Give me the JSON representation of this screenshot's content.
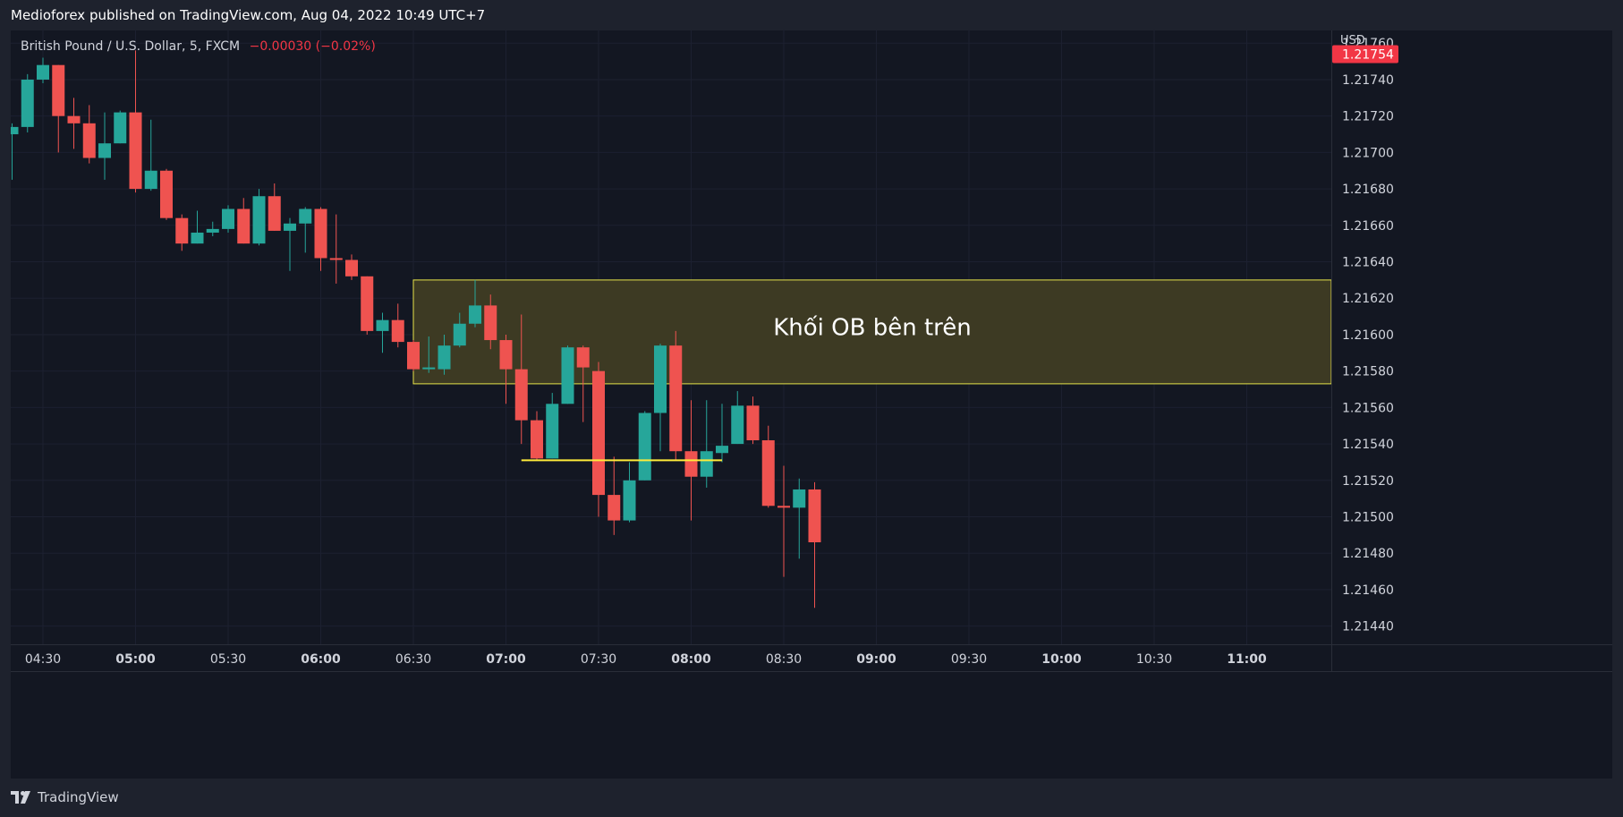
{
  "header": {
    "publish_text": "Medioforex published on TradingView.com, Aug 04, 2022 10:49 UTC+7"
  },
  "legend": {
    "symbol": "British Pound / U.S. Dollar, 5, FXCM",
    "change": "−0.00030 (−0.02%)"
  },
  "footer": {
    "brand": "TradingView",
    "logo_icon": "tradingview-logo-icon"
  },
  "colors": {
    "up": "#26a69a",
    "down": "#ef5350",
    "background": "#131722",
    "grid": "#1c2030",
    "zone_fill": "#3d3a23",
    "zone_border": "#e6e24a",
    "level_line": "#ffeb3b",
    "price_tag": "#f23645"
  },
  "chart_data": {
    "type": "candlestick",
    "currency_label": "USD",
    "ylim": [
      1.2143,
      1.21767
    ],
    "y_ticks": [
      "1.21760",
      "1.21740",
      "1.21720",
      "1.21700",
      "1.21680",
      "1.21660",
      "1.21640",
      "1.21620",
      "1.21600",
      "1.21580",
      "1.21560",
      "1.21540",
      "1.21520",
      "1.21500",
      "1.21480",
      "1.21460",
      "1.21440"
    ],
    "x_ticks": [
      {
        "label": "04:30",
        "bold": false
      },
      {
        "label": "05:00",
        "bold": true
      },
      {
        "label": "05:30",
        "bold": false
      },
      {
        "label": "06:00",
        "bold": true
      },
      {
        "label": "06:30",
        "bold": false
      },
      {
        "label": "07:00",
        "bold": true
      },
      {
        "label": "07:30",
        "bold": false
      },
      {
        "label": "08:00",
        "bold": true
      },
      {
        "label": "08:30",
        "bold": false
      },
      {
        "label": "09:00",
        "bold": true
      },
      {
        "label": "09:30",
        "bold": false
      },
      {
        "label": "10:00",
        "bold": true
      },
      {
        "label": "10:30",
        "bold": false
      },
      {
        "label": "11:00",
        "bold": true
      }
    ],
    "last_price": "1.21754",
    "candles": [
      {
        "time": "04:20",
        "o": 1.2171,
        "h": 1.21716,
        "l": 1.21685,
        "c": 1.21714
      },
      {
        "time": "04:25",
        "o": 1.21714,
        "h": 1.21743,
        "l": 1.21711,
        "c": 1.2174
      },
      {
        "time": "04:30",
        "o": 1.2174,
        "h": 1.21752,
        "l": 1.21738,
        "c": 1.21748
      },
      {
        "time": "04:35",
        "o": 1.21748,
        "h": 1.21748,
        "l": 1.217,
        "c": 1.2172
      },
      {
        "time": "04:40",
        "o": 1.2172,
        "h": 1.2173,
        "l": 1.21702,
        "c": 1.21716
      },
      {
        "time": "04:45",
        "o": 1.21716,
        "h": 1.21726,
        "l": 1.21694,
        "c": 1.21697
      },
      {
        "time": "04:50",
        "o": 1.21697,
        "h": 1.21722,
        "l": 1.21685,
        "c": 1.21705
      },
      {
        "time": "04:55",
        "o": 1.21705,
        "h": 1.21723,
        "l": 1.21705,
        "c": 1.21722
      },
      {
        "time": "05:00",
        "o": 1.21722,
        "h": 1.21756,
        "l": 1.21678,
        "c": 1.2168
      },
      {
        "time": "05:05",
        "o": 1.2168,
        "h": 1.21718,
        "l": 1.21679,
        "c": 1.2169
      },
      {
        "time": "05:10",
        "o": 1.2169,
        "h": 1.21691,
        "l": 1.21663,
        "c": 1.21664
      },
      {
        "time": "05:15",
        "o": 1.21664,
        "h": 1.21666,
        "l": 1.21646,
        "c": 1.2165
      },
      {
        "time": "05:20",
        "o": 1.2165,
        "h": 1.21668,
        "l": 1.2165,
        "c": 1.21656
      },
      {
        "time": "05:25",
        "o": 1.21656,
        "h": 1.21662,
        "l": 1.21654,
        "c": 1.21658
      },
      {
        "time": "05:30",
        "o": 1.21658,
        "h": 1.21671,
        "l": 1.21656,
        "c": 1.21669
      },
      {
        "time": "05:35",
        "o": 1.21669,
        "h": 1.21675,
        "l": 1.2165,
        "c": 1.2165
      },
      {
        "time": "05:40",
        "o": 1.2165,
        "h": 1.2168,
        "l": 1.21649,
        "c": 1.21676
      },
      {
        "time": "05:45",
        "o": 1.21676,
        "h": 1.21683,
        "l": 1.21657,
        "c": 1.21657
      },
      {
        "time": "05:50",
        "o": 1.21657,
        "h": 1.21664,
        "l": 1.21635,
        "c": 1.21661
      },
      {
        "time": "05:55",
        "o": 1.21661,
        "h": 1.2167,
        "l": 1.21645,
        "c": 1.21669
      },
      {
        "time": "06:00",
        "o": 1.21669,
        "h": 1.2167,
        "l": 1.21635,
        "c": 1.21642
      },
      {
        "time": "06:05",
        "o": 1.21642,
        "h": 1.21666,
        "l": 1.21628,
        "c": 1.21641
      },
      {
        "time": "06:10",
        "o": 1.21641,
        "h": 1.21644,
        "l": 1.2163,
        "c": 1.21632
      },
      {
        "time": "06:15",
        "o": 1.21632,
        "h": 1.21632,
        "l": 1.216,
        "c": 1.21602
      },
      {
        "time": "06:20",
        "o": 1.21602,
        "h": 1.21612,
        "l": 1.2159,
        "c": 1.21608
      },
      {
        "time": "06:25",
        "o": 1.21608,
        "h": 1.21617,
        "l": 1.21593,
        "c": 1.21596
      },
      {
        "time": "06:30",
        "o": 1.21596,
        "h": 1.21597,
        "l": 1.2158,
        "c": 1.21581
      },
      {
        "time": "06:35",
        "o": 1.21581,
        "h": 1.21599,
        "l": 1.21579,
        "c": 1.21582
      },
      {
        "time": "06:40",
        "o": 1.21581,
        "h": 1.216,
        "l": 1.21578,
        "c": 1.21594
      },
      {
        "time": "06:45",
        "o": 1.21594,
        "h": 1.21612,
        "l": 1.21593,
        "c": 1.21606
      },
      {
        "time": "06:50",
        "o": 1.21606,
        "h": 1.2163,
        "l": 1.21604,
        "c": 1.21616
      },
      {
        "time": "06:55",
        "o": 1.21616,
        "h": 1.21622,
        "l": 1.21592,
        "c": 1.21597
      },
      {
        "time": "07:00",
        "o": 1.21597,
        "h": 1.216,
        "l": 1.21562,
        "c": 1.21581
      },
      {
        "time": "07:05",
        "o": 1.21581,
        "h": 1.21611,
        "l": 1.2154,
        "c": 1.21553
      },
      {
        "time": "07:10",
        "o": 1.21553,
        "h": 1.21558,
        "l": 1.21531,
        "c": 1.21532
      },
      {
        "time": "07:15",
        "o": 1.21532,
        "h": 1.21568,
        "l": 1.21532,
        "c": 1.21562
      },
      {
        "time": "07:20",
        "o": 1.21562,
        "h": 1.21594,
        "l": 1.21562,
        "c": 1.21593
      },
      {
        "time": "07:25",
        "o": 1.21593,
        "h": 1.21594,
        "l": 1.21552,
        "c": 1.21582
      },
      {
        "time": "07:30",
        "o": 1.2158,
        "h": 1.21585,
        "l": 1.215,
        "c": 1.21512
      },
      {
        "time": "07:35",
        "o": 1.21512,
        "h": 1.21533,
        "l": 1.2149,
        "c": 1.21498
      },
      {
        "time": "07:40",
        "o": 1.21498,
        "h": 1.2153,
        "l": 1.21497,
        "c": 1.2152
      },
      {
        "time": "07:45",
        "o": 1.2152,
        "h": 1.21558,
        "l": 1.2152,
        "c": 1.21557
      },
      {
        "time": "07:50",
        "o": 1.21557,
        "h": 1.21595,
        "l": 1.21536,
        "c": 1.21594
      },
      {
        "time": "07:55",
        "o": 1.21594,
        "h": 1.21602,
        "l": 1.21531,
        "c": 1.21536
      },
      {
        "time": "08:00",
        "o": 1.21536,
        "h": 1.21564,
        "l": 1.21498,
        "c": 1.21522
      },
      {
        "time": "08:05",
        "o": 1.21522,
        "h": 1.21564,
        "l": 1.21516,
        "c": 1.21536
      },
      {
        "time": "08:10",
        "o": 1.21535,
        "h": 1.21562,
        "l": 1.2153,
        "c": 1.21539
      },
      {
        "time": "08:15",
        "o": 1.2154,
        "h": 1.21569,
        "l": 1.2154,
        "c": 1.21561
      },
      {
        "time": "08:20",
        "o": 1.21561,
        "h": 1.21566,
        "l": 1.2154,
        "c": 1.21542
      },
      {
        "time": "08:25",
        "o": 1.21542,
        "h": 1.2155,
        "l": 1.21505,
        "c": 1.21506
      },
      {
        "time": "08:30",
        "o": 1.21506,
        "h": 1.21528,
        "l": 1.21467,
        "c": 1.21505
      },
      {
        "time": "08:35",
        "o": 1.21505,
        "h": 1.21521,
        "l": 1.21477,
        "c": 1.21515
      },
      {
        "time": "08:40",
        "o": 1.21515,
        "h": 1.21519,
        "l": 1.2145,
        "c": 1.21486
      }
    ],
    "annotations": [
      {
        "kind": "zone",
        "label": "Khối OB bên trên",
        "top": 1.2163,
        "bottom": 1.21573,
        "from": "06:30"
      },
      {
        "kind": "horizontal_line",
        "price": 1.21531,
        "from": "07:05",
        "to": "08:10"
      }
    ]
  }
}
